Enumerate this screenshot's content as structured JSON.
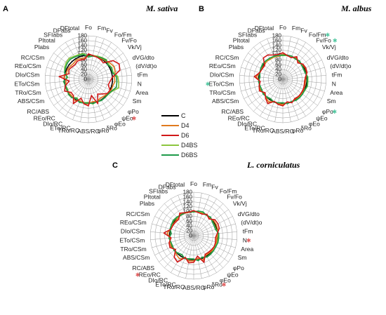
{
  "chart_data": [
    {
      "type": "radar",
      "panel": "A",
      "title": "M. sativa",
      "axes": [
        "Fo",
        "Fm",
        "Fv",
        "Fo/Fm",
        "Fv/Fo",
        "Vk/Vj",
        "dVG/dto",
        "(dV/dt)o",
        "tFm",
        "N",
        "Area",
        "Sm",
        "φPo",
        "ψEo",
        "φEo",
        "δRo",
        "φRo",
        "ABS/RC",
        "TRo/RC",
        "ETo/RC",
        "DIo/RC",
        "REo/RC",
        "RC/ABS",
        "ABS/CSm",
        "TRo/CSm",
        "ETo/CSm",
        "DIo/CSm",
        "REo/CSm",
        "RC/CSm",
        "Plabs",
        "PItotal",
        "SFIabs",
        "DFabs",
        "DFtotal"
      ],
      "marked_axes": [
        "ψEo"
      ],
      "r_ticks": [
        0,
        20,
        40,
        60,
        80,
        100,
        120,
        140,
        160,
        180
      ],
      "rlim": [
        0,
        180
      ],
      "series": [
        {
          "name": "C",
          "values": [
            100,
            100,
            100,
            100,
            100,
            100,
            100,
            100,
            100,
            100,
            100,
            100,
            100,
            100,
            100,
            100,
            100,
            100,
            100,
            100,
            100,
            100,
            100,
            100,
            100,
            100,
            100,
            100,
            100,
            100,
            100,
            100,
            100,
            100
          ]
        },
        {
          "name": "D4",
          "values": [
            95,
            98,
            99,
            101,
            104,
            112,
            118,
            115,
            108,
            110,
            104,
            105,
            99,
            95,
            92,
            100,
            94,
            102,
            101,
            96,
            104,
            98,
            98,
            100,
            98,
            93,
            102,
            94,
            96,
            92,
            90,
            95,
            92,
            90
          ]
        },
        {
          "name": "D6",
          "values": [
            105,
            100,
            98,
            96,
            92,
            128,
            142,
            135,
            100,
            90,
            85,
            100,
            98,
            82,
            72,
            108,
            68,
            110,
            103,
            84,
            118,
            92,
            90,
            110,
            100,
            80,
            122,
            84,
            90,
            85,
            82,
            88,
            86,
            84
          ]
        },
        {
          "name": "D4BS",
          "values": [
            95,
            100,
            103,
            106,
            110,
            104,
            108,
            106,
            122,
            126,
            130,
            110,
            103,
            102,
            102,
            98,
            104,
            96,
            98,
            102,
            90,
            102,
            104,
            95,
            98,
            104,
            86,
            102,
            110,
            115,
            118,
            112,
            110,
            108
          ]
        },
        {
          "name": "D6BS",
          "values": [
            92,
            98,
            100,
            104,
            108,
            100,
            106,
            103,
            116,
            118,
            120,
            108,
            102,
            102,
            103,
            100,
            102,
            98,
            100,
            103,
            93,
            103,
            103,
            98,
            98,
            103,
            88,
            103,
            106,
            110,
            112,
            108,
            106,
            104
          ]
        }
      ]
    },
    {
      "type": "radar",
      "panel": "B",
      "title": "M. albus",
      "axes": [
        "Fo",
        "Fm",
        "Fv",
        "Fo/Fm",
        "Fv/Fo",
        "Vk/Vj",
        "dVG/dto",
        "(dV/dt)o",
        "tFm",
        "N",
        "Area",
        "Sm",
        "φPo",
        "ψEo",
        "φEo",
        "δRo",
        "φRo",
        "ABS/RC",
        "TRo/RC",
        "ETo/RC",
        "DIo/RC",
        "REo/RC",
        "RC/ABS",
        "ABS/CSm",
        "TRo/CSm",
        "ETo/CSm",
        "DIo/CSm",
        "REo/CSm",
        "RC/CSm",
        "Plabs",
        "PItotal",
        "SFIabs",
        "DFabs",
        "DFtotal"
      ],
      "marked_axes": [
        "Fo/Fm",
        "Fv/Fo",
        "ETo/CSm",
        "φPo"
      ],
      "r_ticks": [
        0,
        20,
        40,
        60,
        80,
        100,
        120,
        140,
        160,
        180
      ],
      "rlim": [
        0,
        180
      ],
      "series": [
        {
          "name": "C",
          "values": [
            100,
            100,
            100,
            100,
            100,
            100,
            100,
            100,
            100,
            100,
            100,
            100,
            100,
            100,
            100,
            100,
            100,
            100,
            100,
            100,
            100,
            100,
            100,
            100,
            100,
            100,
            100,
            100,
            100,
            100,
            100,
            100,
            100,
            100
          ]
        },
        {
          "name": "D4",
          "values": [
            104,
            100,
            98,
            105,
            96,
            102,
            104,
            103,
            96,
            94,
            95,
            96,
            97,
            98,
            96,
            102,
            97,
            105,
            103,
            99,
            110,
            104,
            95,
            104,
            100,
            96,
            110,
            99,
            97,
            96,
            100,
            98,
            99,
            97
          ]
        },
        {
          "name": "D6",
          "values": [
            110,
            100,
            96,
            110,
            92,
            104,
            106,
            104,
            94,
            90,
            92,
            94,
            95,
            96,
            94,
            104,
            95,
            110,
            106,
            98,
            118,
            106,
            92,
            108,
            102,
            94,
            118,
            100,
            96,
            94,
            120,
            118,
            108,
            104
          ]
        },
        {
          "name": "D4BS",
          "values": [
            98,
            100,
            101,
            98,
            102,
            98,
            96,
            97,
            104,
            104,
            106,
            102,
            101,
            102,
            102,
            99,
            102,
            98,
            99,
            101,
            96,
            99,
            101,
            98,
            99,
            100,
            96,
            99,
            101,
            104,
            102,
            102,
            101,
            100
          ]
        },
        {
          "name": "D6BS",
          "values": [
            100,
            102,
            103,
            99,
            103,
            97,
            95,
            96,
            102,
            102,
            104,
            101,
            102,
            103,
            103,
            98,
            103,
            97,
            99,
            102,
            95,
            98,
            102,
            97,
            98,
            101,
            95,
            99,
            102,
            105,
            104,
            103,
            102,
            101
          ]
        }
      ]
    },
    {
      "type": "radar",
      "panel": "C",
      "title": "L. corniculatus",
      "axes": [
        "Fo",
        "Fm",
        "Fv",
        "Fo/Fm",
        "Fv/Fo",
        "Vk/Vj",
        "dVG/dto",
        "(dV/dt)o",
        "tFm",
        "N",
        "Area",
        "Sm",
        "φPo",
        "ψEo",
        "φEo",
        "δRo",
        "φRo",
        "ABS/RC",
        "TRo/RC",
        "ETo/RC",
        "DIo/RC",
        "REo/RC",
        "RC/ABS",
        "ABS/CSm",
        "TRo/CSm",
        "ETo/CSm",
        "DIo/CSm",
        "REo/CSm",
        "RC/CSm",
        "Plabs",
        "PItotal",
        "SFIabs",
        "DFabs",
        "DFtotal"
      ],
      "marked_axes": [
        "N",
        "δRo",
        "REo/RC"
      ],
      "r_ticks": [
        0,
        20,
        40,
        60,
        80,
        100,
        120,
        140,
        160,
        180
      ],
      "rlim": [
        0,
        180
      ],
      "series": [
        {
          "name": "C",
          "values": [
            100,
            100,
            100,
            100,
            100,
            100,
            100,
            100,
            100,
            100,
            100,
            100,
            100,
            100,
            100,
            100,
            100,
            100,
            100,
            100,
            100,
            100,
            100,
            100,
            100,
            100,
            100,
            100,
            100,
            100,
            100,
            100,
            100,
            100
          ]
        },
        {
          "name": "D4",
          "values": [
            102,
            100,
            100,
            102,
            98,
            104,
            104,
            103,
            100,
            96,
            98,
            98,
            98,
            96,
            95,
            108,
            96,
            104,
            106,
            100,
            112,
            106,
            98,
            104,
            102,
            98,
            110,
            100,
            98,
            96,
            98,
            104,
            100,
            99
          ]
        },
        {
          "name": "D6",
          "values": [
            104,
            98,
            96,
            104,
            94,
            110,
            112,
            110,
            98,
            90,
            94,
            96,
            94,
            92,
            90,
            118,
            86,
            110,
            114,
            96,
            128,
            120,
            94,
            110,
            106,
            94,
            124,
            98,
            96,
            94,
            92,
            110,
            102,
            100
          ]
        },
        {
          "name": "D4BS",
          "values": [
            98,
            102,
            103,
            99,
            103,
            97,
            96,
            96,
            102,
            102,
            102,
            101,
            102,
            103,
            103,
            96,
            104,
            97,
            98,
            101,
            93,
            98,
            101,
            98,
            99,
            102,
            94,
            101,
            102,
            104,
            102,
            100,
            101,
            101
          ]
        },
        {
          "name": "D6BS",
          "values": [
            99,
            104,
            106,
            100,
            104,
            96,
            94,
            94,
            104,
            104,
            104,
            102,
            103,
            104,
            104,
            95,
            105,
            96,
            97,
            102,
            92,
            97,
            102,
            97,
            98,
            103,
            93,
            102,
            103,
            106,
            104,
            101,
            102,
            102
          ]
        }
      ]
    }
  ],
  "legend": [
    {
      "label": "C",
      "color": "#000000"
    },
    {
      "label": "D4",
      "color": "#e07a1e"
    },
    {
      "label": "D6",
      "color": "#d01818"
    },
    {
      "label": "D4BS",
      "color": "#8cc63e"
    },
    {
      "label": "D6BS",
      "color": "#1e9a4a"
    }
  ],
  "colors": {
    "C": "#000000",
    "D4": "#e07a1e",
    "D6": "#d01818",
    "D4BS": "#8cc63e",
    "D6BS": "#1e9a4a",
    "marker_a": "#e05a5a",
    "marker_b": "#4fc7a0",
    "marker_c": "#e05a5a",
    "grid": "#9a9a9a"
  },
  "marker_symbol": "✱"
}
